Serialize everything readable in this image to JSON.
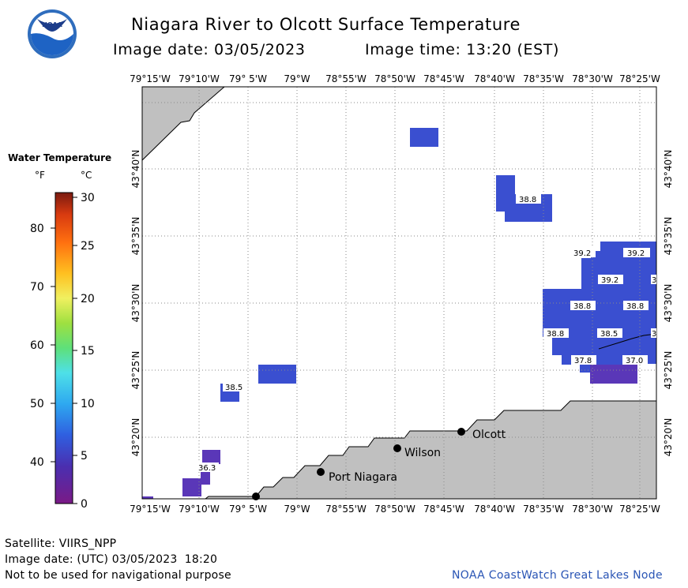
{
  "header": {
    "title": "Niagara River to Olcott Surface Temperature",
    "image_date": "Image date: 03/05/2023",
    "image_time": "Image time: 13:20 (EST)",
    "logo_text": "NOAA"
  },
  "legend": {
    "title": "Water Temperature",
    "unit_f": "°F",
    "unit_c": "°C",
    "f_ticks": [
      "80",
      "70",
      "60",
      "50",
      "40"
    ],
    "c_ticks": [
      "30",
      "25",
      "20",
      "15",
      "10",
      "5",
      "0"
    ]
  },
  "map": {
    "lon_labels": [
      "79°15'W",
      "79°10'W",
      "79° 5'W",
      "79°W",
      "78°55'W",
      "78°50'W",
      "78°45'W",
      "78°40'W",
      "78°35'W",
      "78°30'W",
      "78°25'W"
    ],
    "lat_labels": [
      "43°40'N",
      "43°35'N",
      "43°30'N",
      "43°25'N",
      "43°20'N"
    ],
    "places": [
      "Olcott",
      "Wilson",
      "Port Niagara"
    ],
    "temp_labels": [
      "38.8",
      "39.2",
      "39.2",
      "39.2",
      "38.8",
      "38.8",
      "38.8",
      "38.5",
      "37.8",
      "37.0",
      "38.5",
      "36.3",
      "3",
      "3"
    ],
    "colors": {
      "land": "#c0c0c0",
      "temp_blue": "#3a4fd0",
      "temp_purple": "#5a37b8",
      "grid": "#999999"
    }
  },
  "footer": {
    "satellite": "Satellite: VIIRS_NPP",
    "utc_date": "Image date: (UTC) 03/05/2023  18:20",
    "warning": "Not to be used for navigational purpose",
    "credit": "NOAA CoastWatch Great Lakes Node"
  }
}
